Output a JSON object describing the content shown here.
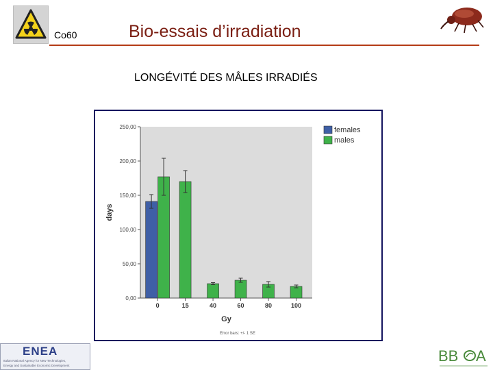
{
  "header": {
    "isotope_label": "Co60",
    "title": "Bio-essais d’irradiation",
    "subtitle": "LONGÉVITÉ DES MÂLES IRRADIÉS"
  },
  "chart_data": {
    "type": "bar",
    "categories": [
      "0",
      "15",
      "40",
      "60",
      "80",
      "100"
    ],
    "series": [
      {
        "name": "females",
        "color": "#3f5fa6",
        "values": [
          141,
          null,
          null,
          null,
          null,
          null
        ],
        "error": [
          10,
          null,
          null,
          null,
          null,
          null
        ]
      },
      {
        "name": "males",
        "color": "#3fb24a",
        "values": [
          177,
          170,
          21,
          26,
          20,
          17
        ],
        "error": [
          27,
          16,
          1.5,
          3,
          4,
          2
        ]
      }
    ],
    "xlabel": "Gy",
    "ylabel": "days",
    "ylim": [
      0,
      250
    ],
    "yticks": [
      "250,00",
      "200,00",
      "150,00",
      "100,00",
      "50,00",
      "0,00"
    ],
    "legend_position": "top-right",
    "footnote": "Error bars: +/- 1 SE",
    "grid": false
  },
  "logos": {
    "left": {
      "text": "ENEA",
      "lines": [
        "Italian National Agency for New Technologies,",
        "Energy and Sustainable Economic Development"
      ]
    },
    "right": {
      "text": "BBOA"
    }
  },
  "icons": {
    "radiation": "radiation-warning-icon",
    "beetle": "weevil-beetle-icon"
  }
}
